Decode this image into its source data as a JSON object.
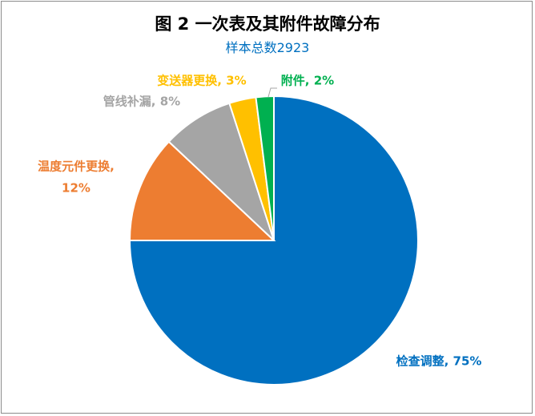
{
  "chart_data": {
    "type": "pie",
    "title": "图 2 一次表及其附件故障分布",
    "subtitle": "样本总数2923",
    "start_angle": "top, clockwise",
    "legend": "none (data labels)",
    "slices": [
      {
        "name": "检查调整",
        "value": 75,
        "label": "检查调整, 75%",
        "color": "#0070C0"
      },
      {
        "name": "温度元件更换",
        "value": 12,
        "label_line1": "温度元件更换,",
        "label_line2": "12%",
        "color": "#ED7D31"
      },
      {
        "name": "管线补漏",
        "value": 8,
        "label": "管线补漏, 8%",
        "color": "#A5A5A5"
      },
      {
        "name": "变送器更换",
        "value": 3,
        "label": "变送器更换, 3%",
        "color": "#FFC000"
      },
      {
        "name": "附件",
        "value": 2,
        "label": "附件, 2%",
        "color": "#00B050"
      }
    ]
  }
}
